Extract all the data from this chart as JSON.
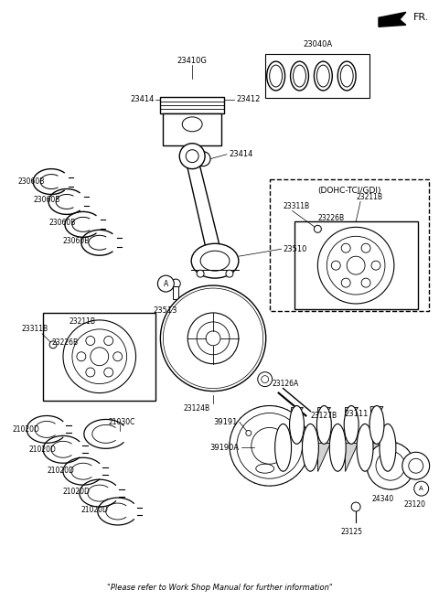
{
  "bg_color": "#ffffff",
  "fr_label": "FR.",
  "dohc_label": "(DOHC-TCI/GDI)",
  "footer": "\"Please refer to Work Shop Manual for further information\"",
  "figw": 4.8,
  "figh": 6.57,
  "dpi": 100
}
